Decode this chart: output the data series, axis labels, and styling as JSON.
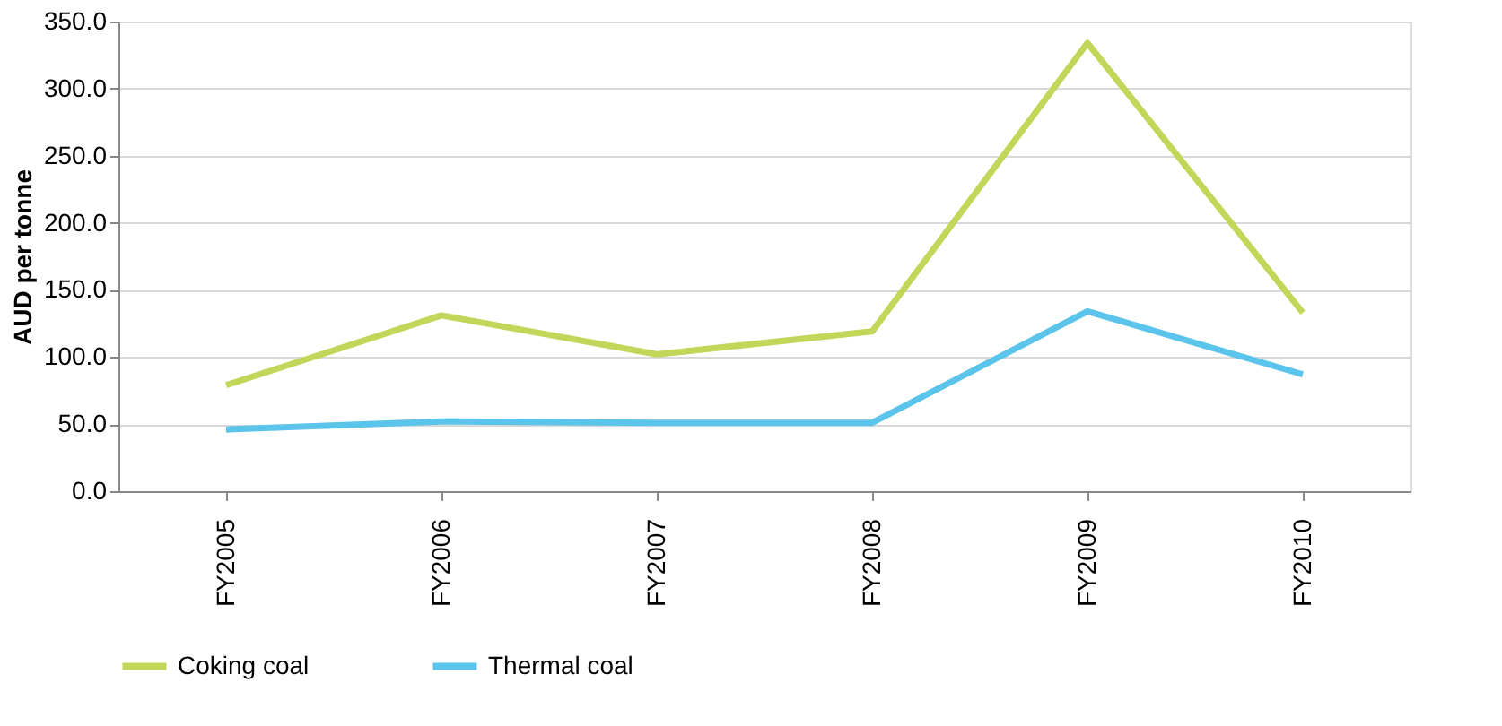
{
  "chart_data": {
    "type": "line",
    "ylabel": "AUD per tonne",
    "categories": [
      "FY2005",
      "FY2006",
      "FY2007",
      "FY2008",
      "FY2009",
      "FY2010"
    ],
    "series": [
      {
        "name": "Coking coal",
        "color": "#c3d65a",
        "values": [
          79,
          131,
          102,
          119,
          334,
          133
        ]
      },
      {
        "name": "Thermal coal",
        "color": "#5bc4ea",
        "values": [
          46,
          52,
          51,
          51,
          134,
          87
        ]
      }
    ],
    "ylim": [
      0,
      350
    ],
    "yticks": [
      {
        "value": 0,
        "label": "0.0"
      },
      {
        "value": 50,
        "label": "50.0"
      },
      {
        "value": 100,
        "label": "100.0"
      },
      {
        "value": 150,
        "label": "150.0"
      },
      {
        "value": 200,
        "label": "200.0"
      },
      {
        "value": 250,
        "label": "250.0"
      },
      {
        "value": 300,
        "label": "300.0"
      },
      {
        "value": 350,
        "label": "350.0"
      }
    ],
    "grid": "y",
    "legend": "bottom",
    "marker": "none",
    "line_style": "solid"
  }
}
